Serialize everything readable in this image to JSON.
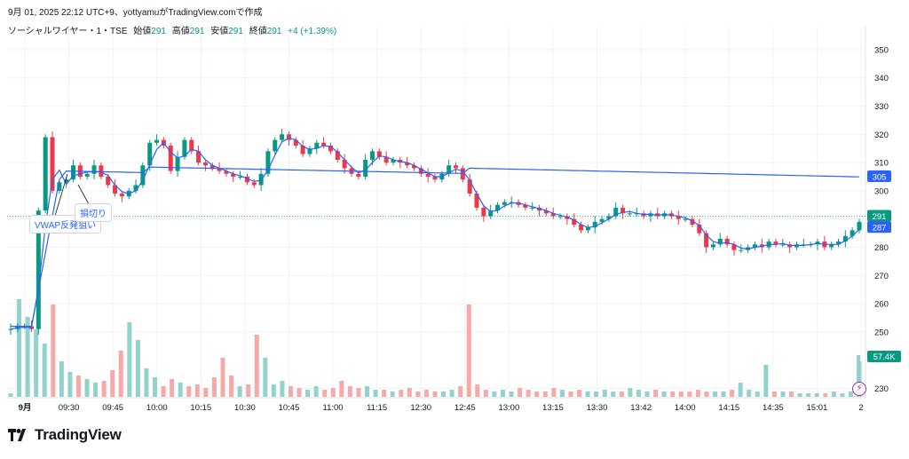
{
  "header": {
    "created_line": "9月 01, 2025 22:12 UTC+9、yottyamuがTradingView.comで作成",
    "symbol": "ソーシャルワイヤー・1・TSE",
    "open_label": "始値",
    "open_value": "291",
    "high_label": "高値",
    "high_value": "291",
    "low_label": "安値",
    "low_value": "291",
    "close_label": "終値",
    "close_value": "291",
    "change": "+4 (+1.39%)"
  },
  "annotations": {
    "vwap_note": "VWAP反発狙い",
    "stop_note": "損切り"
  },
  "badges": {
    "vwap": "305",
    "last_price": "291",
    "prev_price": "287",
    "volume": "57.4K"
  },
  "logo": {
    "text": "TradingView"
  },
  "icons": {
    "flash": "flash-icon",
    "logo": "tradingview-logo-icon"
  },
  "colors": {
    "up": "#089981",
    "down": "#f23645",
    "vwap": "#2962ff",
    "vol_up": "#92d2cc",
    "vol_down": "#f7a9a7",
    "last_price_line": "#089981"
  },
  "chart_data": {
    "type": "candlestick",
    "y_axis": {
      "ticks": [
        230,
        250,
        260,
        270,
        280,
        290,
        300,
        310,
        320,
        330,
        340,
        350
      ],
      "range": [
        227,
        355
      ]
    },
    "x_axis": {
      "ticks": [
        "9月",
        "09:30",
        "09:45",
        "10:00",
        "10:15",
        "10:30",
        "10:45",
        "11:00",
        "11:15",
        "12:30",
        "12:45",
        "13:00",
        "13:15",
        "13:30",
        "13:42",
        "14:00",
        "14:15",
        "14:35",
        "15:01",
        "2"
      ]
    },
    "price_path": [
      [
        0,
        251
      ],
      [
        1,
        252
      ],
      [
        2,
        252
      ],
      [
        3,
        251
      ],
      [
        4,
        293
      ],
      [
        5,
        319
      ],
      [
        6,
        300
      ],
      [
        7,
        303
      ],
      [
        8,
        304
      ],
      [
        9,
        309
      ],
      [
        10,
        305
      ],
      [
        11,
        306
      ],
      [
        12,
        309
      ],
      [
        13,
        305
      ],
      [
        14,
        302
      ],
      [
        15,
        299
      ],
      [
        16,
        298
      ],
      [
        17,
        300
      ],
      [
        18,
        302
      ],
      [
        19,
        309
      ],
      [
        20,
        317
      ],
      [
        21,
        318
      ],
      [
        22,
        316
      ],
      [
        23,
        307
      ],
      [
        24,
        312
      ],
      [
        25,
        318
      ],
      [
        26,
        314
      ],
      [
        27,
        310
      ],
      [
        28,
        309
      ],
      [
        29,
        308
      ],
      [
        30,
        307
      ],
      [
        31,
        306
      ],
      [
        32,
        305
      ],
      [
        33,
        305
      ],
      [
        34,
        303
      ],
      [
        35,
        302
      ],
      [
        36,
        306
      ],
      [
        37,
        314
      ],
      [
        38,
        318
      ],
      [
        39,
        320
      ],
      [
        40,
        318
      ],
      [
        41,
        316
      ],
      [
        42,
        313
      ],
      [
        43,
        315
      ],
      [
        44,
        317
      ],
      [
        45,
        316
      ],
      [
        46,
        314
      ],
      [
        47,
        311
      ],
      [
        48,
        308
      ],
      [
        49,
        306
      ],
      [
        50,
        305
      ],
      [
        51,
        311
      ],
      [
        52,
        314
      ],
      [
        53,
        312
      ],
      [
        54,
        310
      ],
      [
        55,
        311
      ],
      [
        56,
        310
      ],
      [
        57,
        309
      ],
      [
        58,
        308
      ],
      [
        59,
        306
      ],
      [
        60,
        305
      ],
      [
        61,
        304
      ],
      [
        62,
        306
      ],
      [
        63,
        309
      ],
      [
        64,
        308
      ],
      [
        65,
        304
      ],
      [
        66,
        299
      ],
      [
        67,
        294
      ],
      [
        68,
        291
      ],
      [
        69,
        293
      ],
      [
        70,
        295
      ],
      [
        71,
        296
      ],
      [
        72,
        296
      ],
      [
        73,
        295
      ],
      [
        74,
        294
      ],
      [
        75,
        294
      ],
      [
        76,
        293
      ],
      [
        77,
        292
      ],
      [
        78,
        291
      ],
      [
        79,
        291
      ],
      [
        80,
        290
      ],
      [
        81,
        288
      ],
      [
        82,
        286
      ],
      [
        83,
        287
      ],
      [
        84,
        289
      ],
      [
        85,
        290
      ],
      [
        86,
        291
      ],
      [
        87,
        294
      ],
      [
        88,
        292
      ],
      [
        89,
        292
      ],
      [
        90,
        292
      ],
      [
        91,
        291
      ],
      [
        92,
        292
      ],
      [
        93,
        291
      ],
      [
        94,
        292
      ],
      [
        95,
        291
      ],
      [
        96,
        290
      ],
      [
        97,
        290
      ],
      [
        98,
        288
      ],
      [
        99,
        285
      ],
      [
        100,
        280
      ],
      [
        101,
        281
      ],
      [
        102,
        283
      ],
      [
        103,
        281
      ],
      [
        104,
        279
      ],
      [
        105,
        279
      ],
      [
        106,
        280
      ],
      [
        107,
        281
      ],
      [
        108,
        280
      ],
      [
        109,
        282
      ],
      [
        110,
        281
      ],
      [
        111,
        281
      ],
      [
        112,
        280
      ],
      [
        113,
        281
      ],
      [
        114,
        281
      ],
      [
        115,
        281
      ],
      [
        116,
        282
      ],
      [
        117,
        280
      ],
      [
        118,
        281
      ],
      [
        119,
        282
      ],
      [
        120,
        284
      ],
      [
        121,
        286
      ],
      [
        122,
        289
      ]
    ],
    "volume_profile": [
      [
        0,
        2
      ],
      [
        1,
        55
      ],
      [
        2,
        45
      ],
      [
        3,
        38
      ],
      [
        4,
        30
      ],
      [
        5,
        52
      ],
      [
        6,
        20
      ],
      [
        7,
        14
      ],
      [
        8,
        12
      ],
      [
        9,
        10
      ],
      [
        10,
        8
      ],
      [
        11,
        9
      ],
      [
        12,
        15
      ],
      [
        13,
        26
      ],
      [
        14,
        42
      ],
      [
        15,
        32
      ],
      [
        16,
        16
      ],
      [
        17,
        11
      ],
      [
        18,
        6
      ],
      [
        19,
        10
      ],
      [
        20,
        8
      ],
      [
        21,
        6
      ],
      [
        22,
        7
      ],
      [
        23,
        5
      ],
      [
        24,
        11
      ],
      [
        25,
        22
      ],
      [
        26,
        12
      ],
      [
        27,
        6
      ],
      [
        28,
        7
      ],
      [
        29,
        35
      ],
      [
        30,
        22
      ],
      [
        31,
        7
      ],
      [
        32,
        9
      ],
      [
        33,
        6
      ],
      [
        34,
        5
      ],
      [
        35,
        4
      ],
      [
        36,
        6
      ],
      [
        37,
        4
      ],
      [
        38,
        5
      ],
      [
        39,
        9
      ],
      [
        40,
        6
      ],
      [
        41,
        5
      ],
      [
        42,
        6
      ],
      [
        43,
        4
      ],
      [
        44,
        4
      ],
      [
        45,
        3
      ],
      [
        46,
        4
      ],
      [
        47,
        5
      ],
      [
        48,
        3
      ],
      [
        49,
        4
      ],
      [
        50,
        3
      ],
      [
        51,
        3
      ],
      [
        52,
        4
      ],
      [
        53,
        6
      ],
      [
        54,
        52
      ],
      [
        55,
        7
      ],
      [
        56,
        4
      ],
      [
        57,
        3
      ],
      [
        58,
        4
      ],
      [
        59,
        3
      ],
      [
        60,
        5
      ],
      [
        61,
        4
      ],
      [
        62,
        3
      ],
      [
        63,
        3
      ],
      [
        64,
        5
      ],
      [
        65,
        4
      ],
      [
        66,
        3
      ],
      [
        67,
        4
      ],
      [
        68,
        3
      ],
      [
        69,
        3
      ],
      [
        70,
        4
      ],
      [
        71,
        3
      ],
      [
        72,
        3
      ],
      [
        73,
        5
      ],
      [
        74,
        4
      ],
      [
        75,
        3
      ],
      [
        76,
        4
      ],
      [
        77,
        3
      ],
      [
        78,
        3
      ],
      [
        79,
        3
      ],
      [
        80,
        3
      ],
      [
        81,
        4
      ],
      [
        82,
        3
      ],
      [
        83,
        3
      ],
      [
        84,
        3
      ],
      [
        85,
        4
      ],
      [
        86,
        8
      ],
      [
        87,
        4
      ],
      [
        88,
        3
      ],
      [
        89,
        18
      ],
      [
        90,
        3
      ],
      [
        91,
        3
      ],
      [
        92,
        3
      ],
      [
        93,
        2
      ],
      [
        94,
        2
      ],
      [
        95,
        2
      ],
      [
        96,
        2
      ],
      [
        97,
        3
      ],
      [
        98,
        2
      ],
      [
        99,
        3
      ],
      [
        100,
        20
      ]
    ],
    "vwap_level": 305,
    "last_price": 291,
    "prev_price": 287,
    "last_volume": "57.4K"
  }
}
